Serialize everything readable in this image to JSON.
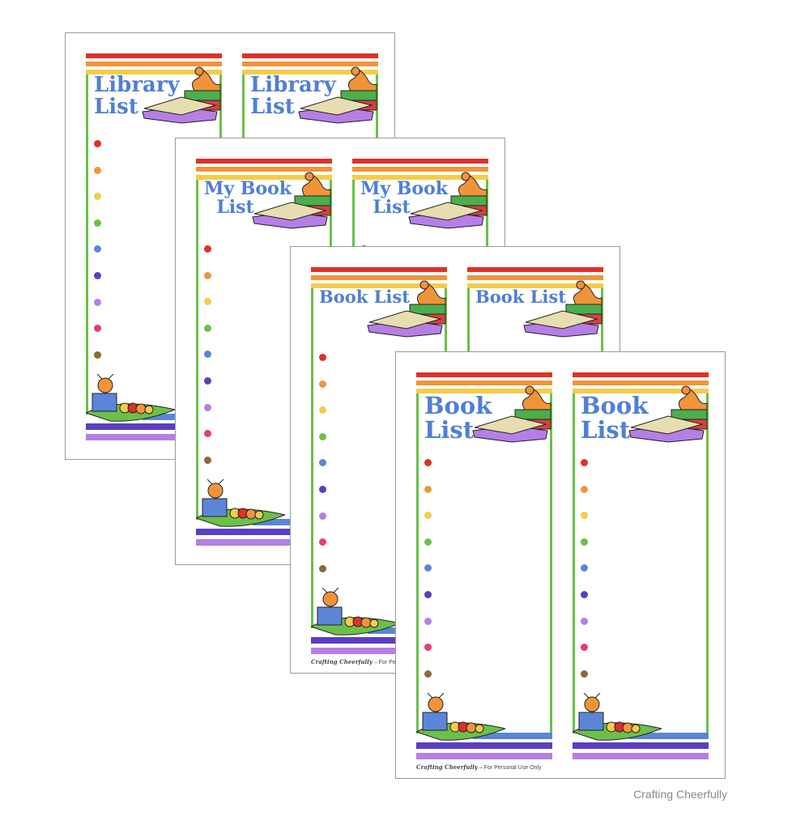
{
  "colors": {
    "red": "#e0302a",
    "orange": "#f0943a",
    "yellow": "#f5cc4a",
    "green": "#6cc04a",
    "blue": "#5b86d8",
    "indigo": "#5a3fc0",
    "lavender": "#b57fe6",
    "pink": "#e83a7a",
    "brown": "#8a6a3a",
    "title": "#4f7fd6"
  },
  "dot_colors": [
    "#e0302a",
    "#f0943a",
    "#f5cc4a",
    "#6cc04a",
    "#5b86d8",
    "#5a3fc0",
    "#b57fe6",
    "#e83a7a",
    "#8a6a3a"
  ],
  "icons": [
    "book-stack-icon",
    "bookworm-reading-icon"
  ],
  "pages": [
    {
      "title": "Library\nList",
      "title_size": 26,
      "footer_brand": "",
      "footer_text": ""
    },
    {
      "title": "My Book\n  List",
      "title_size": 22,
      "footer_brand": "",
      "footer_text": ""
    },
    {
      "title": "Book List",
      "title_size": 21,
      "footer_brand": "Crafting Cheerfully",
      "footer_text": " – For Personal L"
    },
    {
      "title": "Book\nList",
      "title_size": 29,
      "footer_brand": "Crafting Cheerfully",
      "footer_text": " – For Personal Use Only"
    }
  ],
  "watermark": "Crafting Cheerfully"
}
